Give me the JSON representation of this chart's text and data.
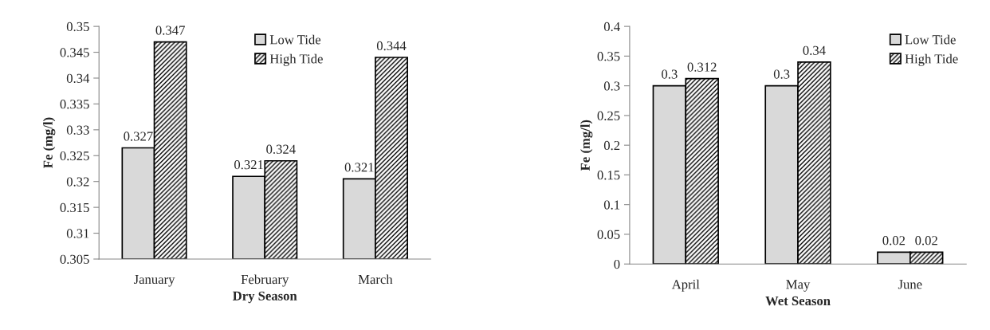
{
  "chart_data": [
    {
      "type": "bar",
      "xlabel": "Dry Season",
      "ylabel": "Fe (mg/l)",
      "categories": [
        "January",
        "February",
        "March"
      ],
      "series": [
        {
          "name": "Low Tide",
          "color": "#d9d9d9",
          "values": [
            0.3265,
            0.321,
            0.3205
          ],
          "value_labels": [
            "0.327",
            "0.321",
            "0.321"
          ]
        },
        {
          "name": "High Tide",
          "color": "#000000",
          "values": [
            0.347,
            0.324,
            0.344
          ],
          "value_labels": [
            "0.347",
            "0.324",
            "0.344"
          ]
        }
      ],
      "ylim": [
        0.305,
        0.35
      ],
      "yticks": [
        0.305,
        0.31,
        0.315,
        0.32,
        0.325,
        0.33,
        0.335,
        0.34,
        0.345,
        0.35
      ],
      "legend": "top right",
      "grid": false
    },
    {
      "type": "bar",
      "xlabel": "Wet Season",
      "ylabel": "Fe (mg/l)",
      "categories": [
        "April",
        "May",
        "June"
      ],
      "series": [
        {
          "name": "Low Tide",
          "color": "#d9d9d9",
          "values": [
            0.3,
            0.3,
            0.02
          ]
        },
        {
          "name": "High Tide",
          "color": "#000000",
          "values": [
            0.312,
            0.34,
            0.02
          ]
        }
      ],
      "data_labels": true,
      "ylim": [
        0,
        0.4
      ],
      "yticks": [
        0,
        0.05,
        0.1,
        0.15,
        0.2,
        0.25,
        0.3,
        0.35,
        0.4
      ],
      "legend": "top right",
      "grid": false
    }
  ]
}
